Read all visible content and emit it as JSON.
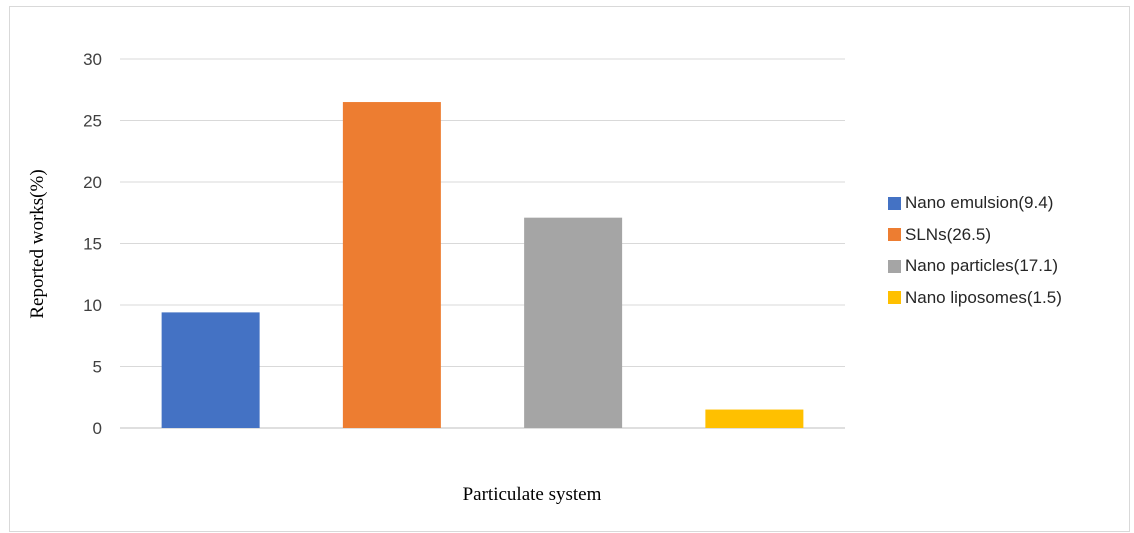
{
  "chart_data": {
    "type": "bar",
    "categories": [
      "Nano emulsion",
      "SLNs",
      "Nano particles",
      "Nano liposomes"
    ],
    "values": [
      9.4,
      26.5,
      17.1,
      1.5
    ],
    "colors": [
      "#4472c4",
      "#ed7d31",
      "#a5a5a5",
      "#ffc000"
    ],
    "ylabel": "Reported works(%)",
    "xlabel": "Particulate system",
    "ylim": [
      0,
      30
    ],
    "yticks": [
      0,
      5,
      10,
      15,
      20,
      25,
      30
    ],
    "grid": true,
    "legend_position": "right",
    "legend": [
      {
        "label": "Nano emulsion(9.4)",
        "color": "#4472c4"
      },
      {
        "label": "SLNs(26.5)",
        "color": "#ed7d31"
      },
      {
        "label": "Nano particles(17.1)",
        "color": "#a5a5a5"
      },
      {
        "label": "Nano liposomes(1.5)",
        "color": "#ffc000"
      }
    ]
  }
}
